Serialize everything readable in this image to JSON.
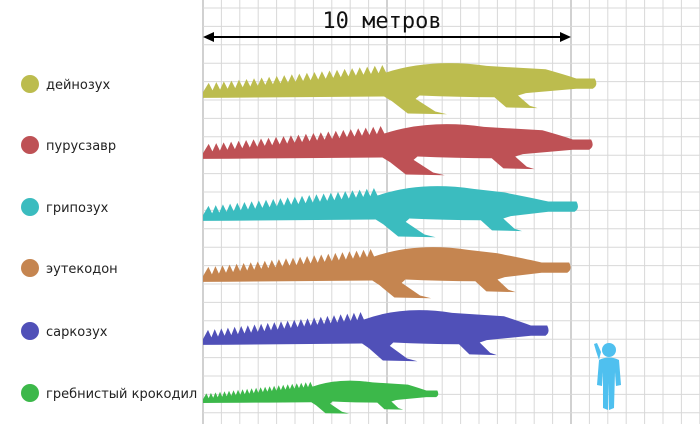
{
  "scale": {
    "label": "10 метров",
    "meters": 10
  },
  "species": [
    {
      "id": "deinosuchus",
      "name": "дейнозух",
      "color": "#bcbc4e",
      "length_m": 10.7
    },
    {
      "id": "purussaurus",
      "name": "пурусзавр",
      "color": "#be5155",
      "length_m": 10.6
    },
    {
      "id": "gryposuchus",
      "name": "грипозух",
      "color": "#3bbcbf",
      "length_m": 10.2
    },
    {
      "id": "euthecodon",
      "name": "эутекодон",
      "color": "#c58550",
      "length_m": 10.0
    },
    {
      "id": "sarcosuchus",
      "name": "саркозух",
      "color": "#5050b8",
      "length_m": 9.4
    },
    {
      "id": "saltwater",
      "name": "гребнистый крокодил",
      "color": "#3cb84a",
      "length_m": 6.4
    }
  ],
  "human": {
    "color": "#4fc0ef",
    "icon": "human-silhouette-icon"
  },
  "grid": {
    "visible": true,
    "color": "#d8d8d8"
  }
}
